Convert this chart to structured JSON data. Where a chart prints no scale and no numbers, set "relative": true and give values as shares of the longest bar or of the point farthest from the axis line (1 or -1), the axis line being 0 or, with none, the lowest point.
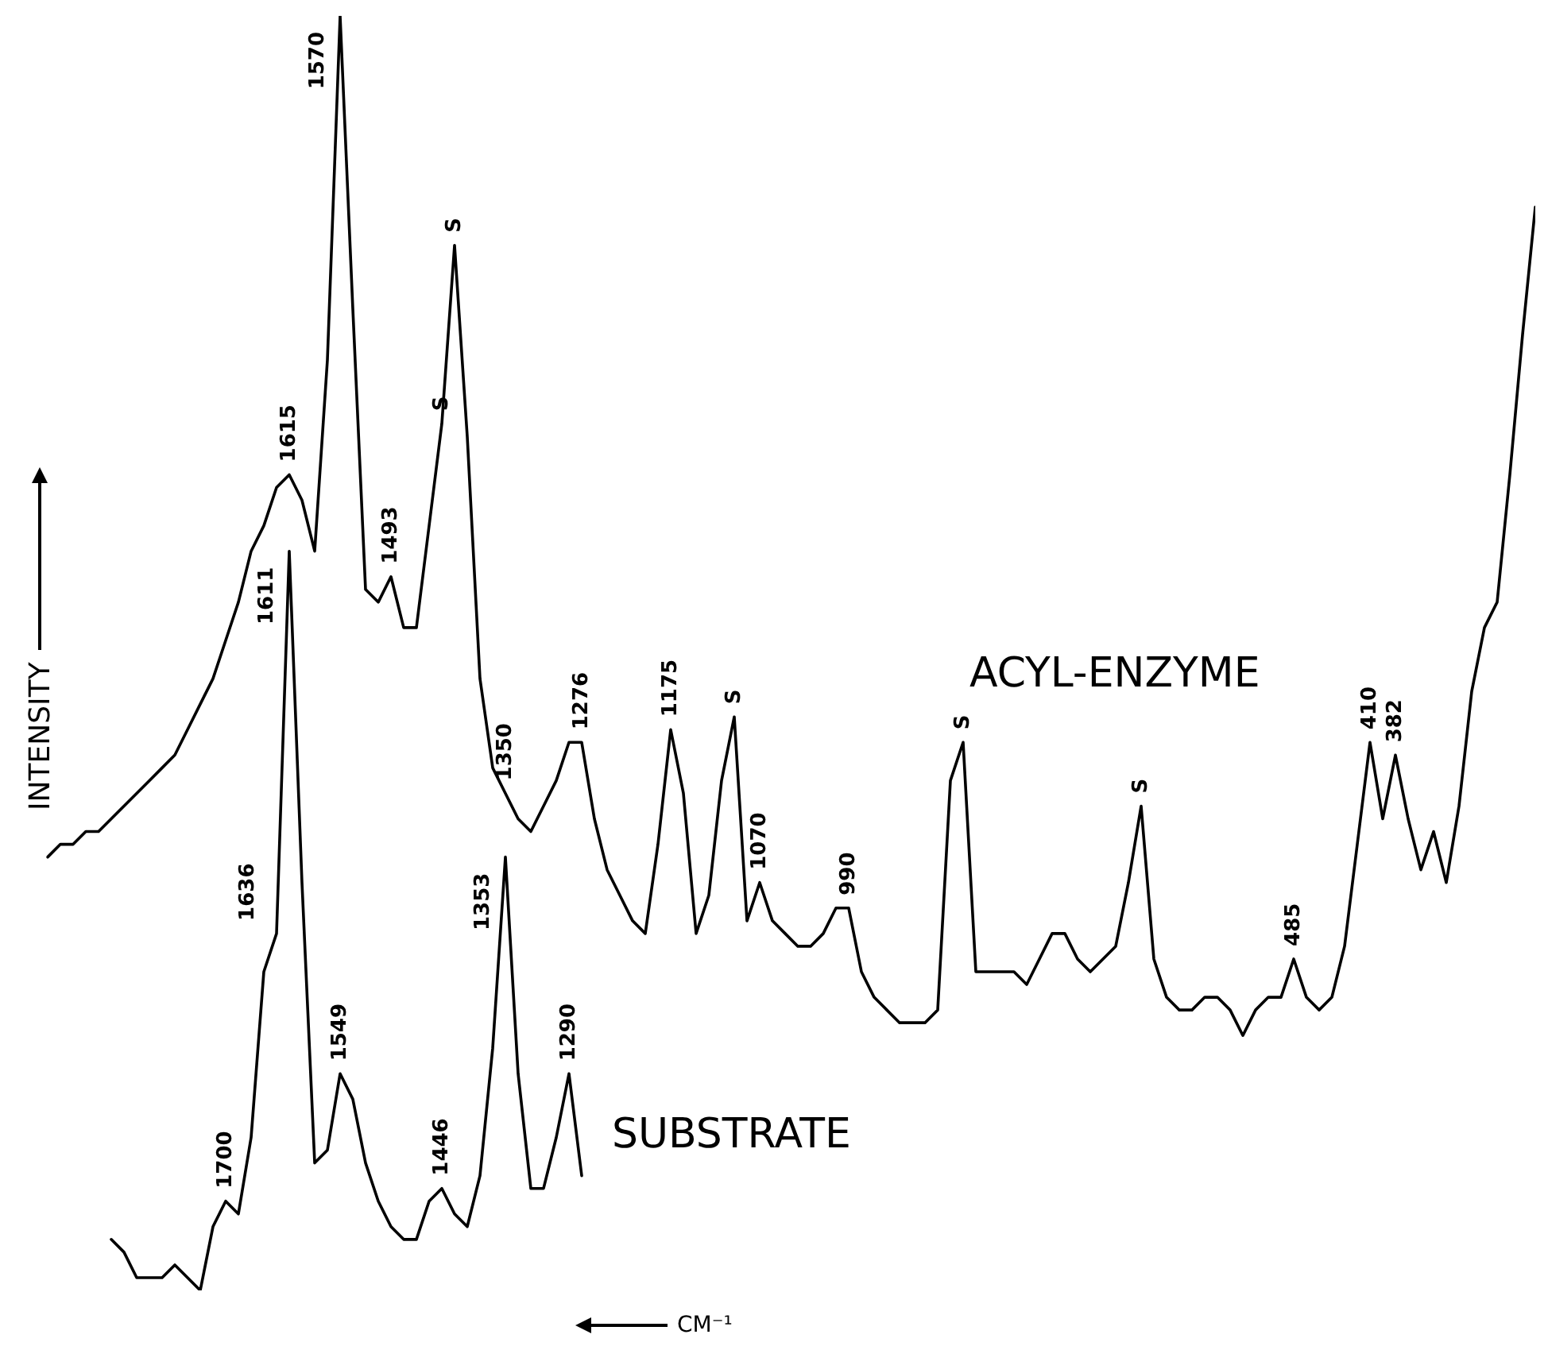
{
  "chart_data": {
    "type": "line",
    "relative": true,
    "ylabel": "INTENSITY",
    "xlabel": "CM⁻¹",
    "categories": [
      null,
      null,
      null,
      null,
      null,
      null,
      null,
      null,
      null,
      null,
      null,
      null,
      null,
      null,
      null,
      null,
      null,
      null,
      null,
      null,
      null,
      null,
      null,
      null,
      null,
      null,
      null,
      null,
      null,
      null,
      null,
      null,
      null,
      null,
      null,
      null,
      null,
      null,
      null,
      null,
      null,
      null,
      null,
      null,
      null,
      null,
      null,
      null,
      null,
      null,
      null,
      null,
      null,
      null,
      null,
      null,
      null,
      null,
      null,
      null,
      null,
      null,
      null,
      null,
      null,
      null,
      null,
      null,
      null,
      null,
      null,
      null,
      null,
      null,
      null,
      null,
      null,
      null,
      null,
      null,
      null,
      null,
      null,
      null,
      null,
      null,
      null,
      null,
      null,
      null,
      null,
      null,
      null,
      null,
      null,
      null,
      null,
      null,
      null,
      null,
      null,
      null,
      null,
      null,
      null,
      null,
      null,
      null,
      null,
      null,
      null,
      null,
      null,
      null,
      null,
      null,
      null,
      null
    ],
    "series": [
      {
        "name": "ACYL-ENZYME",
        "color": "#000000",
        "values": [
          0.34,
          0.35,
          0.35,
          0.36,
          0.36,
          0.37,
          0.38,
          0.39,
          0.4,
          0.41,
          0.42,
          0.44,
          0.46,
          0.48,
          0.51,
          0.54,
          0.58,
          0.6,
          0.63,
          0.64,
          0.62,
          0.58,
          0.73,
          1.0,
          0.77,
          0.55,
          0.54,
          0.56,
          0.52,
          0.52,
          0.6,
          0.68,
          0.82,
          0.67,
          0.48,
          0.41,
          0.39,
          0.37,
          0.36,
          0.38,
          0.4,
          0.43,
          0.43,
          0.37,
          0.33,
          0.31,
          0.29,
          0.28,
          0.35,
          0.44,
          0.39,
          0.28,
          0.31,
          0.4,
          0.45,
          0.29,
          0.32,
          0.29,
          0.28,
          0.27,
          0.27,
          0.28,
          0.3,
          0.3,
          0.25,
          0.23,
          0.22,
          0.21,
          0.21,
          0.21,
          0.22,
          0.4,
          0.43,
          0.25,
          0.25,
          0.25,
          0.25,
          0.24,
          0.26,
          0.28,
          0.28,
          0.26,
          0.25,
          0.26,
          0.27,
          0.32,
          0.38,
          0.26,
          0.23,
          0.22,
          0.22,
          0.23,
          0.23,
          0.22,
          0.2,
          0.22,
          0.23,
          0.23,
          0.26,
          0.23,
          0.22,
          0.23,
          0.27,
          0.35,
          0.43,
          0.37,
          0.42,
          0.37,
          0.33,
          0.36,
          0.32,
          0.38,
          0.47,
          0.52,
          0.54,
          0.64,
          0.75,
          0.85
        ]
      },
      {
        "name": "SUBSTRATE",
        "color": "#000000",
        "values": [
          null,
          null,
          null,
          null,
          null,
          0.04,
          0.03,
          0.01,
          0.01,
          0.01,
          0.02,
          0.01,
          0,
          0.05,
          0.07,
          0.06,
          0.12,
          0.25,
          0.28,
          0.58,
          0.32,
          0.1,
          0.11,
          0.17,
          0.15,
          0.1,
          0.07,
          0.05,
          0.04,
          0.04,
          0.07,
          0.08,
          0.06,
          0.05,
          0.09,
          0.19,
          0.34,
          0.17,
          0.08,
          0.08,
          0.12,
          0.17,
          0.09,
          null,
          null,
          null,
          null,
          null,
          null,
          null,
          null,
          null,
          null,
          null,
          null,
          null,
          null,
          null,
          null,
          null,
          null,
          null,
          null,
          null,
          null,
          null,
          null,
          null,
          null,
          null,
          null,
          null,
          null,
          null,
          null,
          null,
          null,
          null,
          null,
          null,
          null,
          null,
          null,
          null,
          null,
          null,
          null,
          null,
          null,
          null,
          null,
          null,
          null,
          null,
          null,
          null,
          null,
          null,
          null,
          null,
          null,
          null,
          null,
          null,
          null,
          null,
          null,
          null,
          null,
          null,
          null,
          null,
          null,
          null,
          null,
          null,
          null,
          null
        ]
      }
    ],
    "annotations": [
      "1615",
      "1570",
      "1493",
      "S",
      "S",
      "1350",
      "1276",
      "1175",
      "S",
      "1070",
      "990",
      "S",
      "S",
      "485",
      "410",
      "382",
      "1700",
      "1636",
      "1611",
      "1549",
      "1446",
      "1353",
      "1290"
    ]
  }
}
